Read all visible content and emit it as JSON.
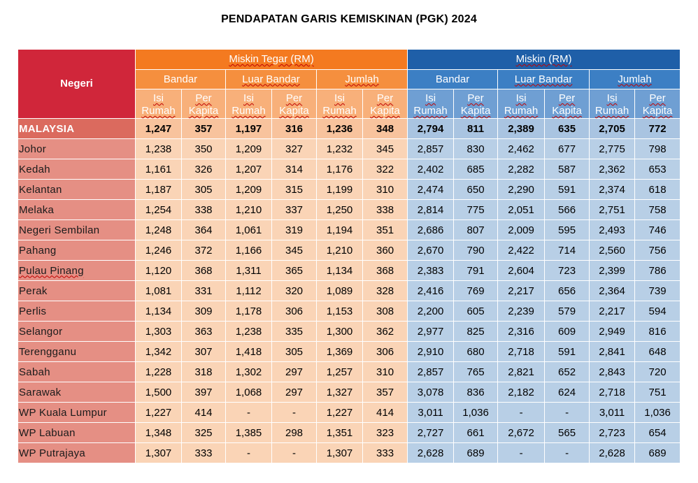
{
  "title": "PENDAPATAN GARIS KEMISKINAN (PGK) 2024",
  "headers": {
    "negeri": "Negeri",
    "miskin_tegar": "Miskin Tegar (RM)",
    "miskin": "Miskin (RM)",
    "bandar": "Bandar",
    "luar_bandar": "Luar Bandar",
    "jumlah": "Jumlah",
    "isi_rumah_1": "Isi",
    "isi_rumah_2": "Rumah",
    "per_kapita_1": "Per",
    "per_kapita_2": "Kapita"
  },
  "rows": [
    {
      "negeri": "MALAYSIA",
      "v": [
        "1,247",
        "357",
        "1,197",
        "316",
        "1,236",
        "348",
        "2,794",
        "811",
        "2,389",
        "635",
        "2,705",
        "772"
      ]
    },
    {
      "negeri": "Johor",
      "v": [
        "1,238",
        "350",
        "1,209",
        "327",
        "1,232",
        "345",
        "2,857",
        "830",
        "2,462",
        "677",
        "2,775",
        "798"
      ]
    },
    {
      "negeri": "Kedah",
      "v": [
        "1,161",
        "326",
        "1,207",
        "314",
        "1,176",
        "322",
        "2,402",
        "685",
        "2,282",
        "587",
        "2,362",
        "653"
      ]
    },
    {
      "negeri": "Kelantan",
      "v": [
        "1,187",
        "305",
        "1,209",
        "315",
        "1,199",
        "310",
        "2,474",
        "650",
        "2,290",
        "591",
        "2,374",
        "618"
      ]
    },
    {
      "negeri": "Melaka",
      "v": [
        "1,254",
        "338",
        "1,210",
        "337",
        "1,250",
        "338",
        "2,814",
        "775",
        "2,051",
        "566",
        "2,751",
        "758"
      ]
    },
    {
      "negeri": "Negeri Sembilan",
      "v": [
        "1,248",
        "364",
        "1,061",
        "319",
        "1,194",
        "351",
        "2,686",
        "807",
        "2,009",
        "595",
        "2,493",
        "746"
      ]
    },
    {
      "negeri": "Pahang",
      "v": [
        "1,246",
        "372",
        "1,166",
        "345",
        "1,210",
        "360",
        "2,670",
        "790",
        "2,422",
        "714",
        "2,560",
        "756"
      ]
    },
    {
      "negeri": "Pulau Pinang",
      "v": [
        "1,120",
        "368",
        "1,311",
        "365",
        "1,134",
        "368",
        "2,383",
        "791",
        "2,604",
        "723",
        "2,399",
        "786"
      ]
    },
    {
      "negeri": "Perak",
      "v": [
        "1,081",
        "331",
        "1,112",
        "320",
        "1,089",
        "328",
        "2,416",
        "769",
        "2,217",
        "656",
        "2,364",
        "739"
      ]
    },
    {
      "negeri": "Perlis",
      "v": [
        "1,134",
        "309",
        "1,178",
        "306",
        "1,153",
        "308",
        "2,200",
        "605",
        "2,239",
        "579",
        "2,217",
        "594"
      ]
    },
    {
      "negeri": "Selangor",
      "v": [
        "1,303",
        "363",
        "1,238",
        "335",
        "1,300",
        "362",
        "2,977",
        "825",
        "2,316",
        "609",
        "2,949",
        "816"
      ]
    },
    {
      "negeri": "Terengganu",
      "v": [
        "1,342",
        "307",
        "1,418",
        "305",
        "1,369",
        "306",
        "2,910",
        "680",
        "2,718",
        "591",
        "2,841",
        "648"
      ]
    },
    {
      "negeri": "Sabah",
      "v": [
        "1,228",
        "318",
        "1,302",
        "297",
        "1,257",
        "310",
        "2,857",
        "765",
        "2,821",
        "652",
        "2,843",
        "720"
      ]
    },
    {
      "negeri": "Sarawak",
      "v": [
        "1,500",
        "397",
        "1,068",
        "297",
        "1,327",
        "357",
        "3,078",
        "836",
        "2,182",
        "624",
        "2,718",
        "751"
      ]
    },
    {
      "negeri": "WP Kuala Lumpur",
      "v": [
        "1,227",
        "414",
        "-",
        "-",
        "1,227",
        "414",
        "3,011",
        "1,036",
        "-",
        "-",
        "3,011",
        "1,036"
      ]
    },
    {
      "negeri": "WP Labuan",
      "v": [
        "1,348",
        "325",
        "1,385",
        "298",
        "1,351",
        "323",
        "2,727",
        "661",
        "2,672",
        "565",
        "2,723",
        "654"
      ]
    },
    {
      "negeri": "WP Putrajaya",
      "v": [
        "1,307",
        "333",
        "-",
        "-",
        "1,307",
        "333",
        "2,628",
        "689",
        "-",
        "-",
        "2,628",
        "689"
      ]
    }
  ]
}
